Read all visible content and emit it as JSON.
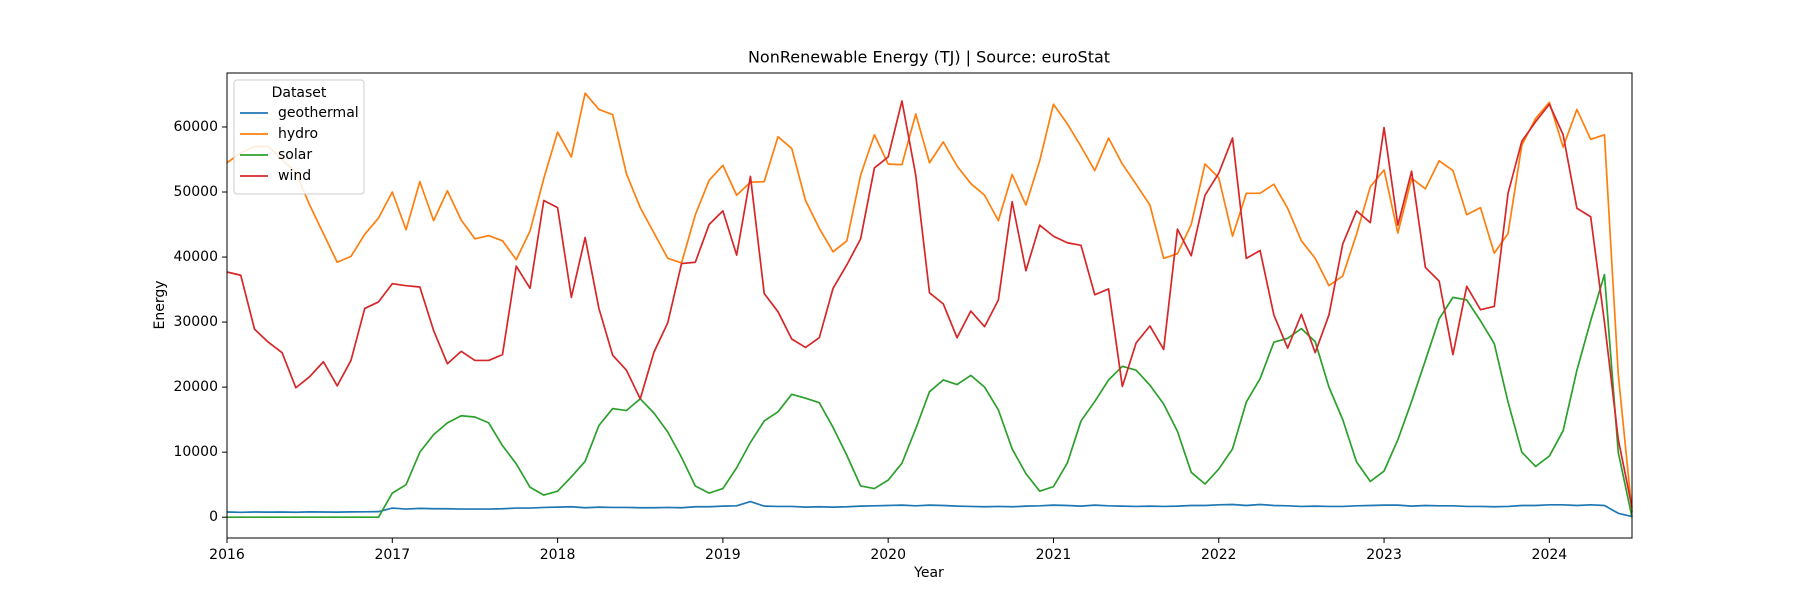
{
  "chart_data": {
    "type": "line",
    "title": "NonRenewable Energy (TJ) | Source: euroStat",
    "x_label": "Year",
    "y_label": "Energy",
    "legend_title": "Dataset",
    "legend_loc": "upper left",
    "x": [
      "2016-01",
      "2016-02",
      "2016-03",
      "2016-04",
      "2016-05",
      "2016-06",
      "2016-07",
      "2016-08",
      "2016-09",
      "2016-10",
      "2016-11",
      "2016-12",
      "2017-01",
      "2017-02",
      "2017-03",
      "2017-04",
      "2017-05",
      "2017-06",
      "2017-07",
      "2017-08",
      "2017-09",
      "2017-10",
      "2017-11",
      "2017-12",
      "2018-01",
      "2018-02",
      "2018-03",
      "2018-04",
      "2018-05",
      "2018-06",
      "2018-07",
      "2018-08",
      "2018-09",
      "2018-10",
      "2018-11",
      "2018-12",
      "2019-01",
      "2019-02",
      "2019-03",
      "2019-04",
      "2019-05",
      "2019-06",
      "2019-07",
      "2019-08",
      "2019-09",
      "2019-10",
      "2019-11",
      "2019-12",
      "2020-01",
      "2020-02",
      "2020-03",
      "2020-04",
      "2020-05",
      "2020-06",
      "2020-07",
      "2020-08",
      "2020-09",
      "2020-10",
      "2020-11",
      "2020-12",
      "2021-01",
      "2021-02",
      "2021-03",
      "2021-04",
      "2021-05",
      "2021-06",
      "2021-07",
      "2021-08",
      "2021-09",
      "2021-10",
      "2021-11",
      "2021-12",
      "2022-01",
      "2022-02",
      "2022-03",
      "2022-04",
      "2022-05",
      "2022-06",
      "2022-07",
      "2022-08",
      "2022-09",
      "2022-10",
      "2022-11",
      "2022-12",
      "2023-01",
      "2023-02",
      "2023-03",
      "2023-04",
      "2023-05",
      "2023-06",
      "2023-07",
      "2023-08",
      "2023-09",
      "2023-10",
      "2023-11",
      "2023-12",
      "2024-01",
      "2024-02",
      "2024-03",
      "2024-04",
      "2024-05",
      "2024-06",
      "2024-07"
    ],
    "xlim": [
      "2016-01",
      "2024-07"
    ],
    "xticks": [
      {
        "value": "2016-01",
        "label": "2016"
      },
      {
        "value": "2017-01",
        "label": "2017"
      },
      {
        "value": "2018-01",
        "label": "2018"
      },
      {
        "value": "2019-01",
        "label": "2019"
      },
      {
        "value": "2020-01",
        "label": "2020"
      },
      {
        "value": "2021-01",
        "label": "2021"
      },
      {
        "value": "2022-01",
        "label": "2022"
      },
      {
        "value": "2023-01",
        "label": "2023"
      },
      {
        "value": "2024-01",
        "label": "2024"
      }
    ],
    "ylim": [
      -3200,
      68300
    ],
    "yticks": [
      0,
      10000,
      20000,
      30000,
      40000,
      50000,
      60000
    ],
    "series": [
      {
        "name": "geothermal",
        "color": "#1f77b4",
        "values": [
          800,
          750,
          800,
          780,
          800,
          760,
          820,
          800,
          780,
          820,
          830,
          850,
          1400,
          1250,
          1350,
          1300,
          1300,
          1250,
          1250,
          1250,
          1300,
          1400,
          1400,
          1500,
          1550,
          1600,
          1450,
          1550,
          1500,
          1500,
          1450,
          1450,
          1500,
          1450,
          1600,
          1600,
          1700,
          1750,
          2400,
          1700,
          1650,
          1650,
          1550,
          1600,
          1550,
          1600,
          1700,
          1750,
          1800,
          1850,
          1750,
          1850,
          1800,
          1700,
          1650,
          1600,
          1650,
          1600,
          1700,
          1750,
          1850,
          1800,
          1700,
          1850,
          1750,
          1700,
          1650,
          1700,
          1650,
          1700,
          1800,
          1800,
          1900,
          1950,
          1800,
          1950,
          1800,
          1750,
          1650,
          1700,
          1650,
          1650,
          1750,
          1800,
          1850,
          1850,
          1700,
          1800,
          1750,
          1750,
          1650,
          1650,
          1600,
          1650,
          1800,
          1800,
          1900,
          1900,
          1800,
          1900,
          1800,
          600,
          100
        ]
      },
      {
        "name": "hydro",
        "color": "#ff7f0e",
        "values": [
          54500,
          56000,
          57000,
          57000,
          55000,
          53000,
          48000,
          43600,
          39200,
          40100,
          43500,
          46000,
          50000,
          44200,
          51600,
          45600,
          50200,
          45700,
          42800,
          43300,
          42500,
          39600,
          44000,
          52100,
          59200,
          55400,
          65200,
          62700,
          61900,
          52800,
          47600,
          43700,
          39800,
          39100,
          46500,
          51800,
          54100,
          49500,
          51500,
          51600,
          58500,
          56700,
          48700,
          44400,
          40800,
          42500,
          52600,
          58800,
          54300,
          54200,
          62000,
          54500,
          57700,
          54000,
          51300,
          49500,
          45600,
          52700,
          48000,
          54800,
          63500,
          60500,
          57000,
          53300,
          58300,
          54300,
          51200,
          48000,
          39800,
          40500,
          45000,
          54300,
          52200,
          43200,
          49800,
          49800,
          51200,
          47500,
          42500,
          39800,
          35600,
          37100,
          43500,
          50800,
          53400,
          43700,
          52100,
          50500,
          54800,
          53300,
          46500,
          47600,
          40600,
          43600,
          57200,
          61300,
          63800,
          56900,
          62700,
          58100,
          58800,
          22000,
          800
        ]
      },
      {
        "name": "solar",
        "color": "#2ca02c",
        "values": [
          0,
          0,
          0,
          0,
          0,
          0,
          0,
          0,
          0,
          0,
          0,
          0,
          3700,
          5000,
          10000,
          12700,
          14500,
          15600,
          15400,
          14500,
          11000,
          8200,
          4600,
          3400,
          4000,
          6200,
          8600,
          14100,
          16700,
          16400,
          18200,
          16000,
          13100,
          9200,
          4800,
          3700,
          4400,
          7600,
          11500,
          14800,
          16200,
          18900,
          18300,
          17600,
          13800,
          9500,
          4800,
          4400,
          5700,
          8300,
          13600,
          19300,
          21100,
          20400,
          21800,
          20000,
          16500,
          10500,
          6700,
          4000,
          4700,
          8300,
          14800,
          17800,
          21100,
          23200,
          22600,
          20300,
          17400,
          13200,
          6900,
          5100,
          7400,
          10500,
          17700,
          21300,
          26900,
          27500,
          29000,
          27000,
          20000,
          15000,
          8500,
          5500,
          7100,
          11900,
          17800,
          24100,
          30500,
          33800,
          33400,
          30200,
          26700,
          17700,
          10000,
          7800,
          9400,
          13300,
          22600,
          30200,
          37300,
          10000,
          0
        ]
      },
      {
        "name": "wind",
        "color": "#d62728",
        "values": [
          37700,
          37200,
          28900,
          26900,
          25300,
          19900,
          21600,
          23900,
          20200,
          24100,
          32100,
          33100,
          35900,
          35600,
          35400,
          28700,
          23600,
          25500,
          24100,
          24100,
          25000,
          38600,
          35200,
          48700,
          47600,
          33800,
          43000,
          32100,
          24900,
          22600,
          18200,
          25400,
          29900,
          39000,
          39200,
          45000,
          47100,
          40300,
          52400,
          34400,
          31600,
          27400,
          26100,
          27600,
          35200,
          38800,
          42800,
          53700,
          55400,
          64000,
          52600,
          34500,
          32800,
          27600,
          31700,
          29300,
          33400,
          48500,
          37900,
          44900,
          43200,
          42200,
          41800,
          34200,
          35100,
          20100,
          26800,
          29400,
          25800,
          44300,
          40200,
          49500,
          52900,
          58300,
          39800,
          41000,
          31100,
          26000,
          31200,
          25300,
          31100,
          42000,
          47100,
          45300,
          59900,
          44900,
          53200,
          38400,
          36300,
          25000,
          35500,
          31900,
          32400,
          49800,
          57800,
          60800,
          63500,
          58800,
          47500,
          46200,
          30000,
          12000,
          1500
        ]
      }
    ]
  }
}
